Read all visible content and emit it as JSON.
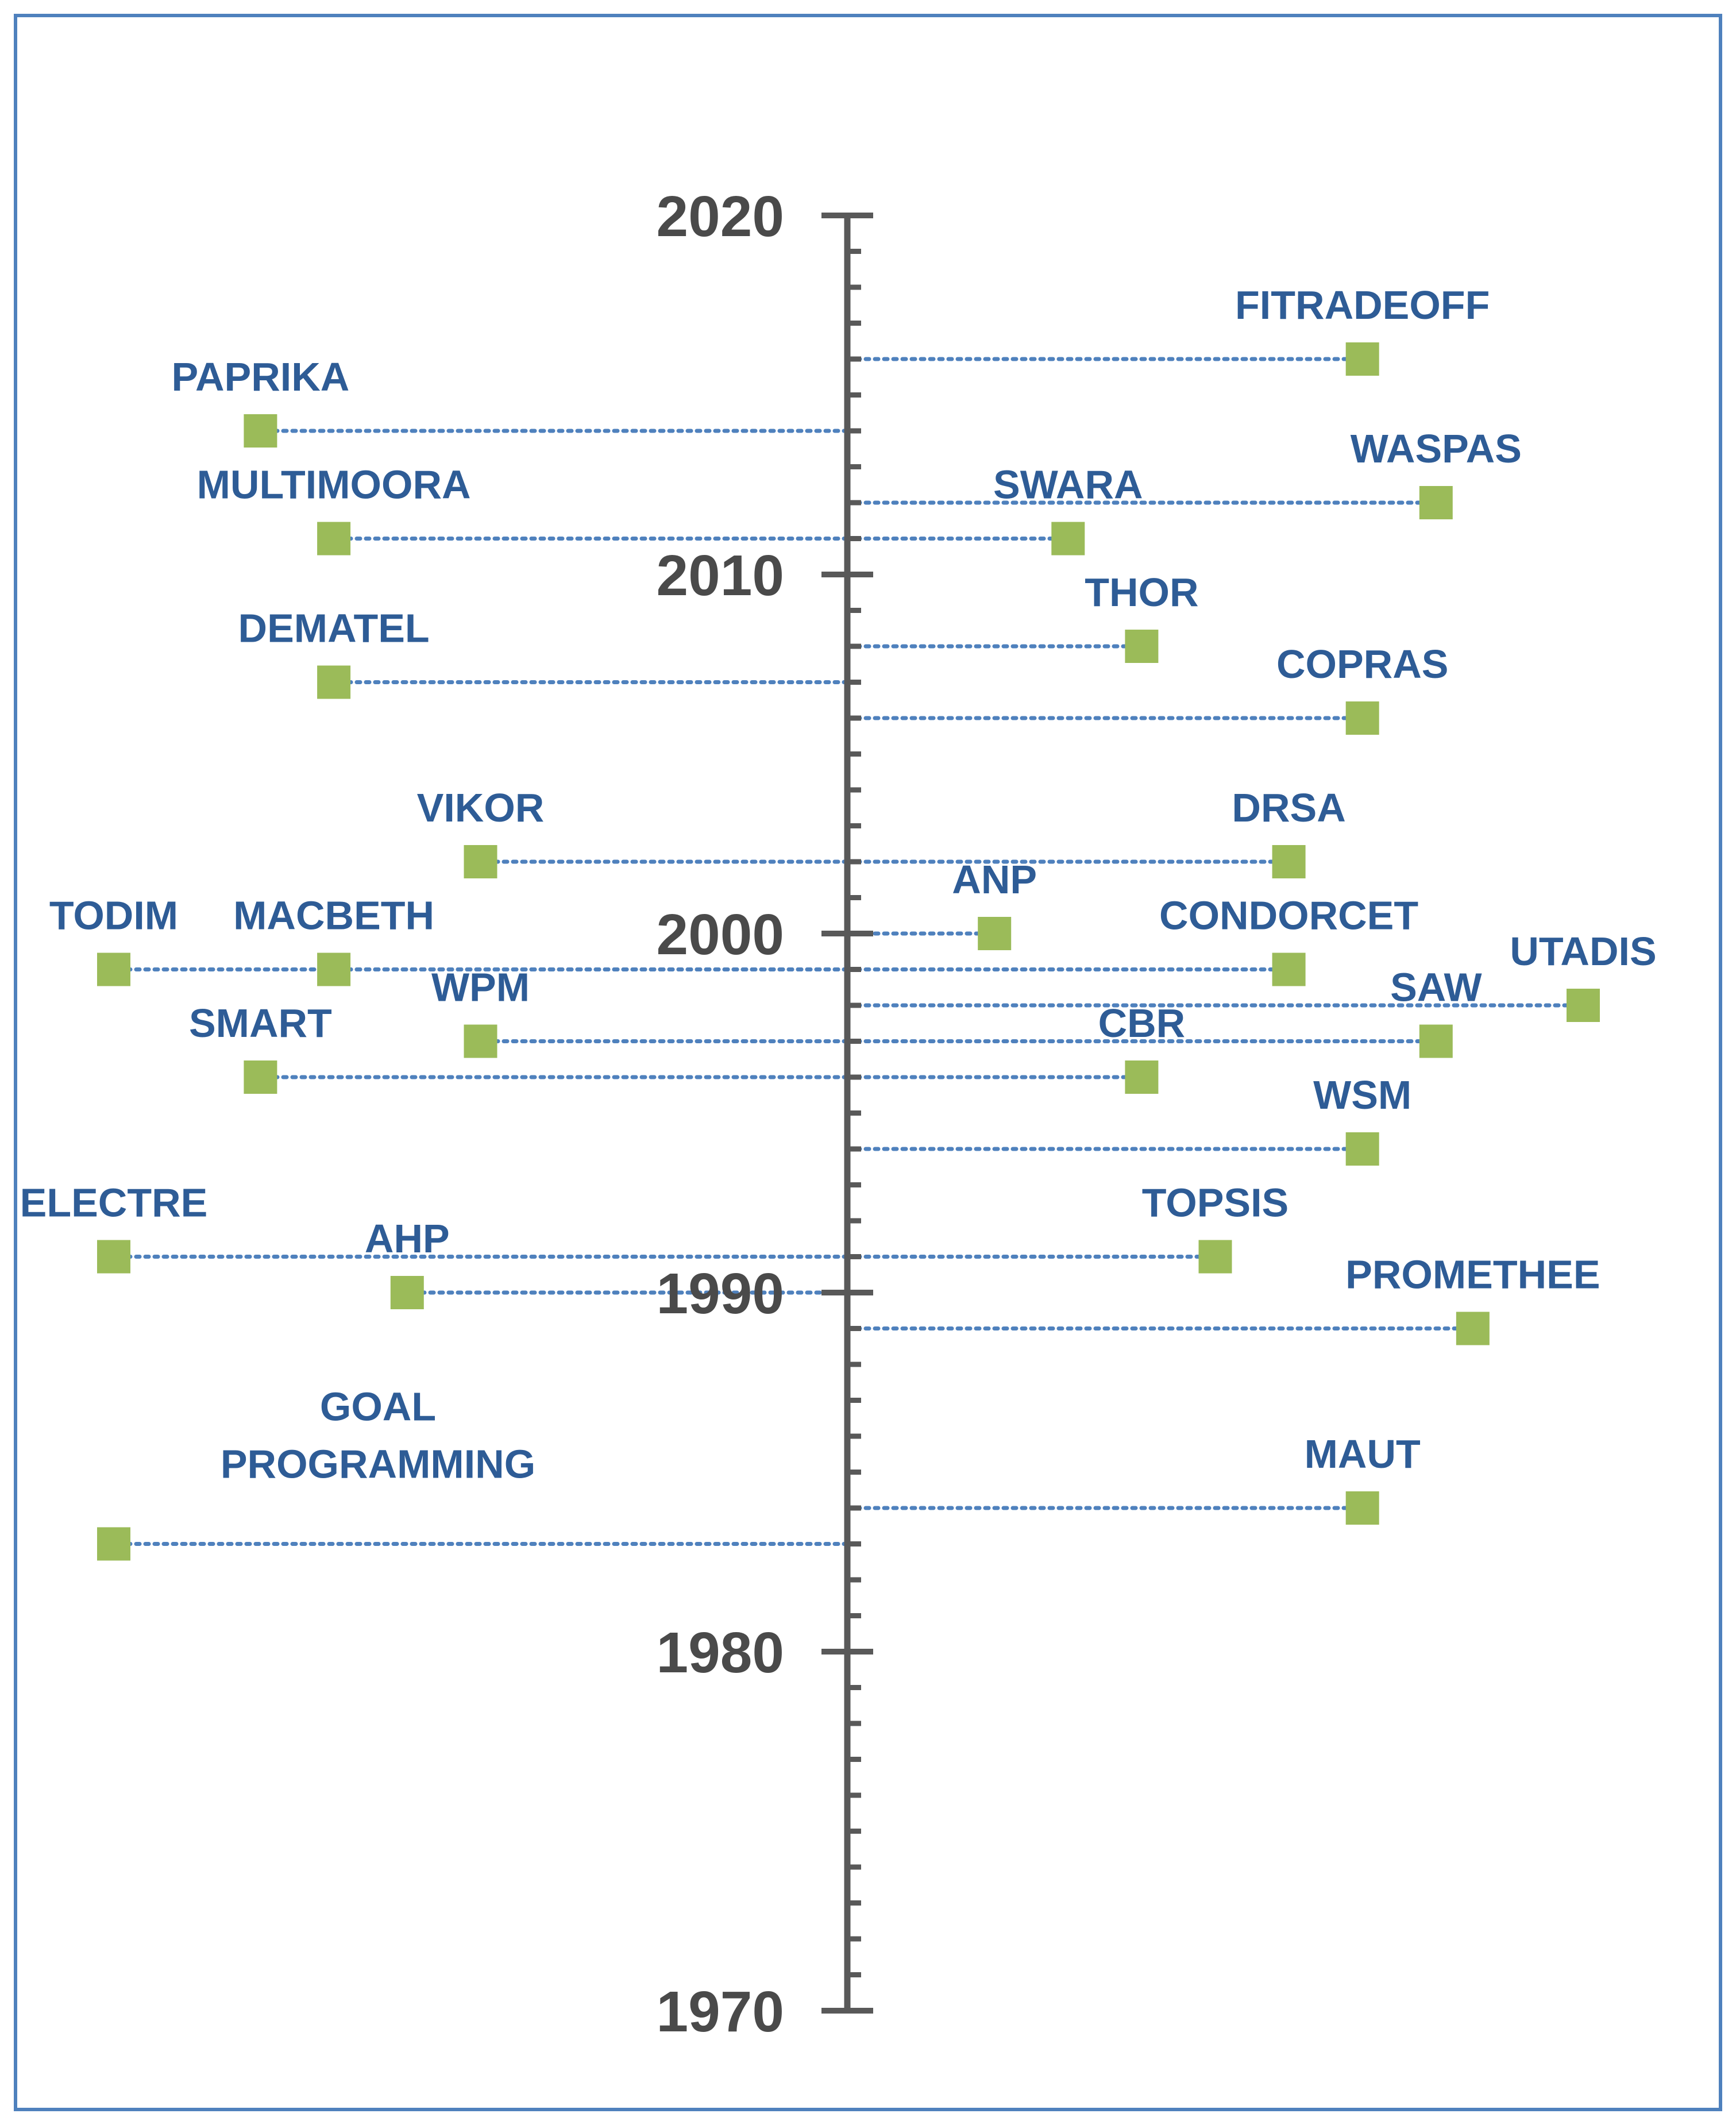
{
  "chart_data": {
    "type": "scatter",
    "title": "",
    "xlabel": "",
    "ylabel": "",
    "ylim": [
      1970,
      2020
    ],
    "y_ticks": [
      "1970",
      "1980",
      "1990",
      "2000",
      "2010",
      "2020"
    ],
    "minor_tick_step": 1,
    "grid": false,
    "colors": {
      "marker": "#9bbb59",
      "label": "#2e5c96",
      "leader": "#4f81bd",
      "axis": "#595959",
      "frame": "#4f81bd"
    },
    "points": [
      {
        "name": "FITRADEOFF",
        "year": 2016,
        "side": "right",
        "offset": 0.7,
        "label_pos": "above"
      },
      {
        "name": "PAPRIKA",
        "year": 2014,
        "side": "left",
        "offset": 0.8,
        "label_pos": "above"
      },
      {
        "name": "WASPAS",
        "year": 2012,
        "side": "right",
        "offset": 0.8,
        "label_pos": "above"
      },
      {
        "name": "SWARA",
        "year": 2011,
        "side": "right",
        "offset": 0.3,
        "label_pos": "above"
      },
      {
        "name": "MULTIMOORA",
        "year": 2011,
        "side": "left",
        "offset": 0.7,
        "label_pos": "above"
      },
      {
        "name": "THOR",
        "year": 2008,
        "side": "right",
        "offset": 0.4,
        "label_pos": "above"
      },
      {
        "name": "DEMATEL",
        "year": 2007,
        "side": "left",
        "offset": 0.7,
        "label_pos": "above"
      },
      {
        "name": "COPRAS",
        "year": 2006,
        "side": "right",
        "offset": 0.7,
        "label_pos": "above"
      },
      {
        "name": "VIKOR",
        "year": 2002,
        "side": "left",
        "offset": 0.5,
        "label_pos": "above"
      },
      {
        "name": "DRSA",
        "year": 2002,
        "side": "right",
        "offset": 0.6,
        "label_pos": "above"
      },
      {
        "name": "ANP",
        "year": 2000,
        "side": "right",
        "offset": 0.2,
        "label_pos": "above"
      },
      {
        "name": "TODIM",
        "year": 1999,
        "side": "left",
        "offset": 1.0,
        "label_pos": "above"
      },
      {
        "name": "MACBETH",
        "year": 1999,
        "side": "left",
        "offset": 0.7,
        "label_pos": "above"
      },
      {
        "name": "CONDORCET",
        "year": 1999,
        "side": "right",
        "offset": 0.6,
        "label_pos": "above"
      },
      {
        "name": "UTADIS",
        "year": 1998,
        "side": "right",
        "offset": 1.0,
        "label_pos": "above"
      },
      {
        "name": "SAW",
        "year": 1997,
        "side": "right",
        "offset": 0.8,
        "label_pos": "above"
      },
      {
        "name": "WPM",
        "year": 1997,
        "side": "left",
        "offset": 0.5,
        "label_pos": "above"
      },
      {
        "name": "SMART",
        "year": 1996,
        "side": "left",
        "offset": 0.8,
        "label_pos": "above"
      },
      {
        "name": "CBR",
        "year": 1996,
        "side": "right",
        "offset": 0.4,
        "label_pos": "above"
      },
      {
        "name": "WSM",
        "year": 1994,
        "side": "right",
        "offset": 0.7,
        "label_pos": "above"
      },
      {
        "name": "TOPSIS",
        "year": 1991,
        "side": "right",
        "offset": 0.5,
        "label_pos": "above"
      },
      {
        "name": "ELECTRE",
        "year": 1991,
        "side": "left",
        "offset": 1.0,
        "label_pos": "above"
      },
      {
        "name": "AHP",
        "year": 1990,
        "side": "left",
        "offset": 0.6,
        "label_pos": "above"
      },
      {
        "name": "PROMETHEE",
        "year": 1989,
        "side": "right",
        "offset": 0.85,
        "label_pos": "above"
      },
      {
        "name": "MAUT",
        "year": 1984,
        "side": "right",
        "offset": 0.7,
        "label_pos": "above"
      },
      {
        "name": "GOAL PROGRAMMING",
        "label_lines": [
          "GOAL",
          "PROGRAMMING"
        ],
        "year": 1983,
        "side": "left",
        "offset": 1.0,
        "label_pos": "above-center"
      }
    ]
  }
}
